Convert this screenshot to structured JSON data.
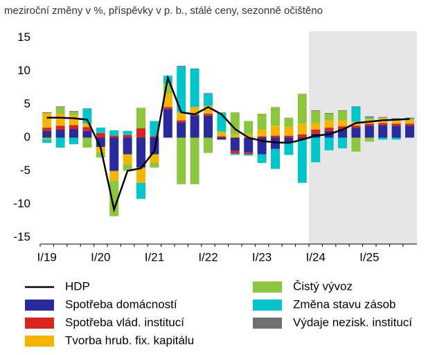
{
  "chart_data": {
    "type": "stacked-bar-line",
    "title": "meziroční změny v %, příspěvky v p. b., stálé ceny, sezonně očištěno",
    "categories": [
      "I/19",
      null,
      null,
      null,
      "I/20",
      null,
      null,
      null,
      "I/21",
      null,
      null,
      null,
      "I/22",
      null,
      null,
      null,
      "I/23",
      null,
      null,
      null,
      "I/24",
      null,
      null,
      null,
      "I/25",
      null,
      null,
      null
    ],
    "shaded_from": "I/24",
    "shade_color": "#e6e6e6",
    "ylim": [
      -16,
      16
    ],
    "yticks": [
      -15,
      -10,
      -5,
      0,
      5,
      10,
      15
    ],
    "series": [
      {
        "name": "Spotřeba domácností",
        "color": "#2a2a9c",
        "values": [
          1.0,
          1.2,
          1.3,
          1.0,
          -1.4,
          -5.0,
          -2.5,
          -4.5,
          -2.5,
          4.3,
          2.3,
          3.3,
          3.3,
          -0.3,
          -2.0,
          -2.2,
          -2.5,
          -1.7,
          -0.8,
          -0.3,
          0.6,
          1.0,
          1.3,
          1.5,
          1.8,
          1.9,
          1.8,
          1.8
        ]
      },
      {
        "name": "Spotřeba vlád. institucí",
        "color": "#d9261c",
        "values": [
          0.5,
          0.6,
          0.6,
          0.6,
          0.7,
          0.3,
          0.4,
          1.4,
          0.2,
          0.3,
          0.3,
          0.2,
          0.3,
          0.2,
          -0.4,
          -0.3,
          0.2,
          0.3,
          0.3,
          0.5,
          0.6,
          0.5,
          0.4,
          0.3,
          0.3,
          0.3,
          0.3,
          0.3
        ]
      },
      {
        "name": "Tvorba hrub. fix. kapitálu",
        "color": "#f5b400",
        "values": [
          2.2,
          1.8,
          1.5,
          0.5,
          -0.8,
          -1.5,
          -1.5,
          -2.3,
          -1.3,
          2.0,
          1.2,
          1.1,
          1.2,
          0.5,
          0.4,
          0.5,
          1.0,
          1.5,
          1.3,
          1.6,
          1.0,
          1.1,
          0.9,
          0.6,
          0.8,
          0.7,
          0.6,
          0.6
        ]
      },
      {
        "name": "Čistý vývoz",
        "color": "#8cc63e",
        "values": [
          -0.3,
          1.0,
          0.5,
          -1.5,
          -0.8,
          -5.3,
          -1.0,
          3.1,
          -0.7,
          1.5,
          -7.0,
          -7.0,
          -2.3,
          0.3,
          3.4,
          2.0,
          2.4,
          2.8,
          1.4,
          4.5,
          1.8,
          1.0,
          1.4,
          -2.1,
          -0.6,
          0.1,
          0.1,
          0.1
        ]
      },
      {
        "name": "Změna stavu zásob",
        "color": "#00c6cc",
        "values": [
          -0.5,
          -1.5,
          -1.0,
          2.2,
          0.8,
          0.8,
          0.6,
          -2.4,
          2.3,
          1.2,
          6.9,
          5.7,
          1.8,
          2.8,
          -0.2,
          -0.2,
          -1.3,
          -3.0,
          -1.8,
          -6.5,
          -3.7,
          -1.9,
          -1.6,
          2.2,
          0.2,
          -0.3,
          -0.3,
          0.1
        ]
      },
      {
        "name": "Výdaje nezisk. institucí",
        "color": "#6f6f6f",
        "values": [
          0.1,
          0.1,
          0.1,
          0.1,
          0.0,
          0.0,
          0.0,
          0.0,
          0.0,
          0.0,
          0.1,
          0.1,
          0.1,
          0.0,
          0.0,
          0.0,
          0.0,
          0.0,
          0.0,
          0.0,
          0.1,
          0.1,
          0.1,
          0.1,
          0.1,
          0.1,
          0.1,
          0.1
        ]
      }
    ],
    "line": {
      "name": "HDP",
      "color": "#000000",
      "values": [
        3.0,
        3.0,
        2.9,
        2.7,
        -1.5,
        -10.8,
        -5.0,
        -4.6,
        -2.0,
        9.0,
        3.8,
        3.5,
        4.6,
        3.5,
        1.3,
        0.0,
        -0.5,
        -0.7,
        -0.8,
        -0.3,
        0.3,
        0.5,
        1.2,
        2.2,
        2.4,
        2.6,
        2.7,
        2.8
      ]
    }
  }
}
